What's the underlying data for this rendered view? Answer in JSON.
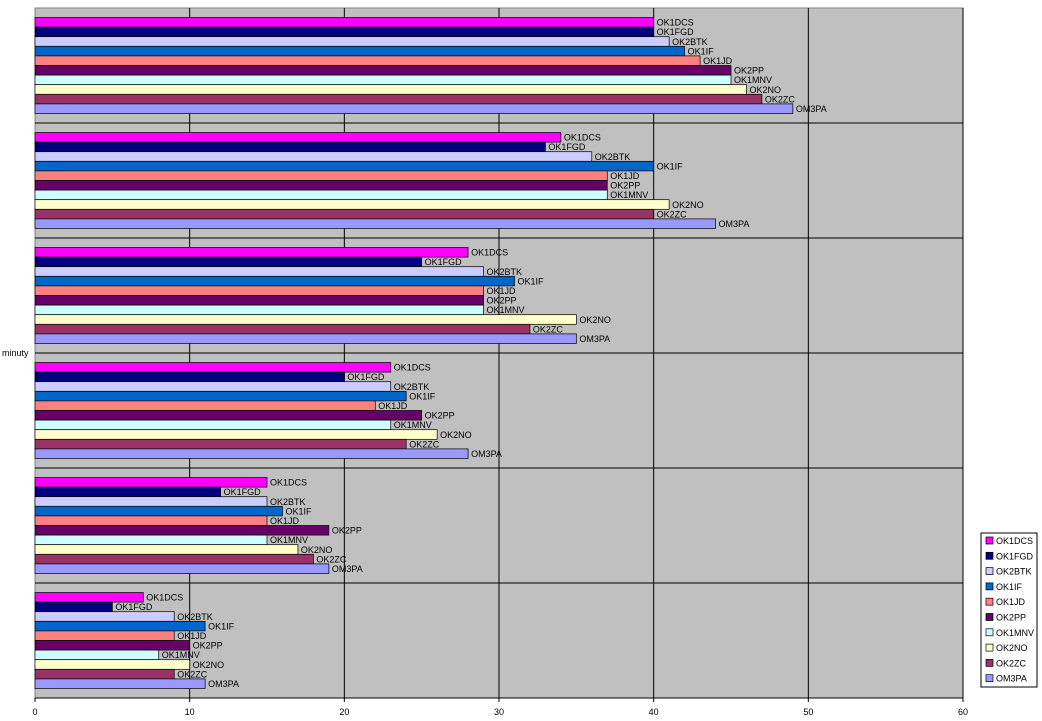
{
  "chart_data": {
    "type": "bar",
    "orientation": "horizontal",
    "title": "",
    "xlabel": "",
    "ylabel": "minuty",
    "xlim": [
      0,
      60
    ],
    "xticks": [
      0,
      10,
      20,
      30,
      40,
      50,
      60
    ],
    "grid": true,
    "legend_position": "bottom-right",
    "plot_background": "#c0c0c0",
    "series": [
      {
        "name": "OK1DCS",
        "color": "#ff00ff",
        "values": [
          40,
          34,
          28,
          23,
          15,
          7
        ]
      },
      {
        "name": "OK1FGD",
        "color": "#000080",
        "values": [
          40,
          33,
          25,
          20,
          12,
          5
        ]
      },
      {
        "name": "OK2BTK",
        "color": "#ccccff",
        "values": [
          41,
          36,
          29,
          23,
          15,
          9
        ]
      },
      {
        "name": "OK1IF",
        "color": "#0066cc",
        "values": [
          42,
          40,
          31,
          24,
          16,
          11
        ]
      },
      {
        "name": "OK1JD",
        "color": "#ff8080",
        "values": [
          43,
          37,
          29,
          22,
          15,
          9
        ]
      },
      {
        "name": "OK2PP",
        "color": "#660066",
        "values": [
          45,
          37,
          29,
          25,
          19,
          10
        ]
      },
      {
        "name": "OK1MNV",
        "color": "#ccffff",
        "values": [
          45,
          37,
          29,
          23,
          15,
          8
        ]
      },
      {
        "name": "OK2NO",
        "color": "#ffffcc",
        "values": [
          46,
          41,
          35,
          26,
          17,
          10
        ]
      },
      {
        "name": "OK2ZC",
        "color": "#993366",
        "values": [
          47,
          40,
          32,
          24,
          18,
          9
        ]
      },
      {
        "name": "OM3PA",
        "color": "#9999ff",
        "values": [
          49,
          44,
          35,
          28,
          19,
          11
        ]
      }
    ]
  }
}
